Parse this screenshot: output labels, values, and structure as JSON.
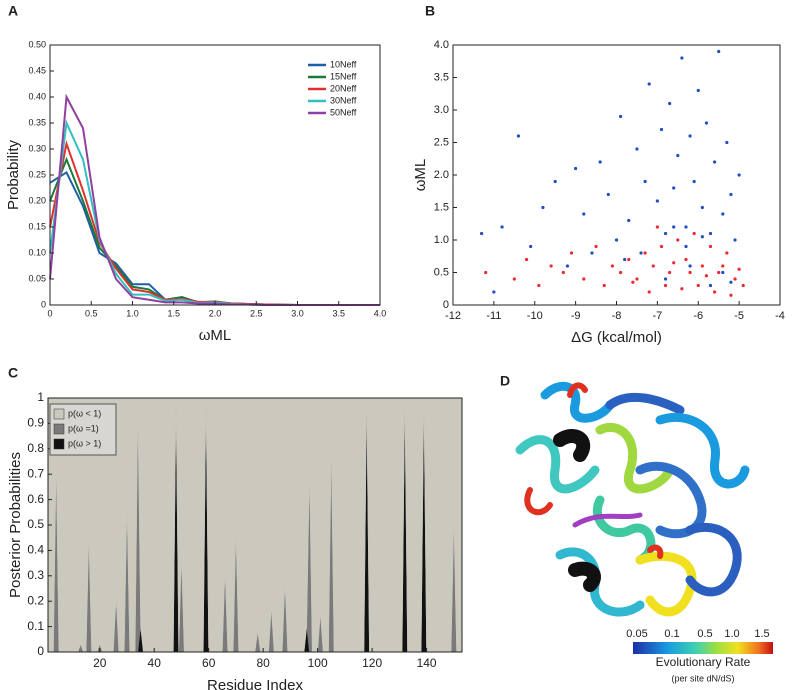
{
  "chart_data": [
    {
      "type": "line",
      "panel": "A",
      "xlabel": "ωML",
      "ylabel": "Probability",
      "x": [
        0,
        0.2,
        0.4,
        0.6,
        0.8,
        1.0,
        1.2,
        1.4,
        1.6,
        1.8,
        2.0,
        2.2,
        2.4,
        2.6,
        3.0,
        3.5,
        4.0
      ],
      "series": [
        {
          "name": "10Neff",
          "color": "#1f5fa8",
          "values": [
            0.235,
            0.255,
            0.19,
            0.1,
            0.08,
            0.04,
            0.04,
            0.01,
            0.015,
            0.005,
            0.005,
            0.003,
            0.002,
            0.001,
            0,
            0,
            0
          ]
        },
        {
          "name": "15Neff",
          "color": "#1a7a3a",
          "values": [
            0.2,
            0.28,
            0.2,
            0.11,
            0.075,
            0.035,
            0.03,
            0.01,
            0.015,
            0.005,
            0.007,
            0.003,
            0.002,
            0.001,
            0,
            0,
            0
          ]
        },
        {
          "name": "20Neff",
          "color": "#e03030",
          "values": [
            0.15,
            0.31,
            0.22,
            0.12,
            0.07,
            0.03,
            0.025,
            0.01,
            0.012,
            0.006,
            0.006,
            0.003,
            0.002,
            0.001,
            0,
            0,
            0
          ]
        },
        {
          "name": "30Neff",
          "color": "#30c0c0",
          "values": [
            0.1,
            0.35,
            0.28,
            0.125,
            0.06,
            0.02,
            0.02,
            0.008,
            0.01,
            0.004,
            0.005,
            0.002,
            0.001,
            0,
            0,
            0,
            0
          ]
        },
        {
          "name": "50Neff",
          "color": "#9040a0",
          "values": [
            0.05,
            0.4,
            0.34,
            0.13,
            0.05,
            0.015,
            0.01,
            0.005,
            0.005,
            0.003,
            0.003,
            0.001,
            0.001,
            0,
            0,
            0,
            0
          ]
        }
      ],
      "xlim": [
        0,
        4
      ],
      "xticks": [
        0,
        0.5,
        {
          "value": 1,
          "label": "1.0"
        },
        1.5,
        {
          "value": 2,
          "label": "2.0"
        },
        2.5,
        {
          "value": 3,
          "label": "3.0"
        },
        3.5,
        {
          "value": 4,
          "label": "4.0"
        }
      ],
      "ylim": [
        0,
        0.5
      ],
      "yticks": [
        0,
        0.05,
        {
          "value": 0.1,
          "label": "0.10"
        },
        0.15,
        {
          "value": 0.2,
          "label": "0.20"
        },
        0.25,
        {
          "value": 0.3,
          "label": "0.30"
        },
        0.35,
        {
          "value": 0.4,
          "label": "0.40"
        },
        0.45,
        {
          "value": 0.5,
          "label": "0.50"
        }
      ],
      "grid": false,
      "legend": "top-right"
    },
    {
      "type": "scatter",
      "panel": "B",
      "xlabel": "ΔG (kcal/mol)",
      "ylabel": "ωML",
      "series": [
        {
          "color": "#2050c0",
          "x": [
            -11.3,
            -11,
            -10.8,
            -10.4,
            -10.1,
            -9.8,
            -9.5,
            -9.2,
            -9,
            -8.8,
            -8.6,
            -8.4,
            -8.2,
            -8,
            -7.9,
            -7.7,
            -7.5,
            -7.3,
            -7.2,
            -7,
            -6.9,
            -6.8,
            -6.7,
            -6.6,
            -6.5,
            -6.4,
            -6.3,
            -6.2,
            -6.1,
            -6,
            -5.9,
            -5.8,
            -5.7,
            -5.6,
            -5.5,
            -5.4,
            -5.3,
            -5.2,
            -5.1,
            -5,
            -6.8,
            -6.2,
            -5.7,
            -7.4,
            -5.4,
            -6.6,
            -5.9,
            -6.3,
            -7.8,
            -5.2
          ],
          "values": [
            1.1,
            0.2,
            1.2,
            2.6,
            0.9,
            1.5,
            1.9,
            0.6,
            2.1,
            1.4,
            0.8,
            2.2,
            1.7,
            1.0,
            2.9,
            1.3,
            2.4,
            1.9,
            3.4,
            1.6,
            2.7,
            1.1,
            3.1,
            1.8,
            2.3,
            3.8,
            1.2,
            2.6,
            1.9,
            3.3,
            1.5,
            2.8,
            1.1,
            2.2,
            3.9,
            1.4,
            2.5,
            1.7,
            1.0,
            2.0,
            0.4,
            0.6,
            0.3,
            0.8,
            0.5,
            1.2,
            1.05,
            0.9,
            0.7,
            0.35
          ]
        },
        {
          "color": "#f02830",
          "x": [
            -11.2,
            -10.5,
            -10.2,
            -9.9,
            -9.6,
            -9.3,
            -9.1,
            -8.8,
            -8.5,
            -8.3,
            -8.1,
            -7.9,
            -7.7,
            -7.5,
            -7.3,
            -7.1,
            -6.9,
            -6.7,
            -6.5,
            -6.3,
            -6.1,
            -5.9,
            -5.7,
            -5.5,
            -5.3,
            -5.1,
            -4.9,
            -7.2,
            -6.8,
            -6.4,
            -6.0,
            -5.6,
            -5.2,
            -7.6,
            -6.2,
            -5.8,
            -5.4,
            -6.6,
            -7.0,
            -5.0
          ],
          "values": [
            0.5,
            0.4,
            0.7,
            0.3,
            0.6,
            0.5,
            0.8,
            0.4,
            0.9,
            0.3,
            0.6,
            0.5,
            0.7,
            0.4,
            0.8,
            0.6,
            0.9,
            0.5,
            1.0,
            0.7,
            1.1,
            0.6,
            0.9,
            0.5,
            0.8,
            0.4,
            0.3,
            0.2,
            0.3,
            0.25,
            0.3,
            0.2,
            0.15,
            0.35,
            0.5,
            0.45,
            0.6,
            0.65,
            1.2,
            0.55
          ]
        }
      ],
      "xlim": [
        -12,
        -4
      ],
      "xticks": [
        -12,
        -11,
        -10,
        -9,
        -8,
        -7,
        -6,
        -5,
        -4
      ],
      "ylim": [
        0,
        4
      ],
      "yticks": [
        0,
        0.5,
        {
          "value": 1,
          "label": "1.0"
        },
        1.5,
        {
          "value": 2,
          "label": "2.0"
        },
        2.5,
        {
          "value": 3,
          "label": "3.0"
        },
        3.5,
        {
          "value": 4,
          "label": "4.0"
        }
      ],
      "grid": false
    },
    {
      "type": "area",
      "panel": "C",
      "xlabel": "Residue Index",
      "ylabel": "Posterior Probabilities",
      "stacked": true,
      "x": [
        1,
        3,
        4,
        5,
        12,
        13,
        14,
        15,
        16,
        17,
        19,
        20,
        21,
        25,
        26,
        27,
        29,
        30,
        31,
        33,
        34,
        35,
        36,
        47,
        48,
        49,
        50,
        51,
        58,
        59,
        60,
        65,
        66,
        67,
        69,
        70,
        71,
        77,
        78,
        79,
        82,
        83,
        84,
        87,
        88,
        89,
        95,
        96,
        97,
        98,
        100,
        101,
        102,
        104,
        105,
        106,
        117,
        118,
        119,
        131,
        132,
        133,
        138,
        139,
        140,
        149,
        150,
        151,
        153
      ],
      "series": [
        {
          "name": "p(ω < 1)",
          "color": "#cbc8be",
          "values": [
            1,
            1,
            0.27,
            1,
            1,
            0.97,
            1,
            1,
            0.55,
            1,
            1,
            0.97,
            1,
            1,
            0.79,
            1,
            1,
            0.43,
            1,
            1,
            0.06,
            0.9,
            1,
            1,
            0.01,
            1,
            0.63,
            1,
            1,
            0,
            1,
            1,
            0.68,
            1,
            1,
            0.53,
            1,
            1,
            0.92,
            1,
            1,
            0.83,
            1,
            1,
            0.73,
            1,
            1,
            0.9,
            0.3,
            1,
            1,
            0.85,
            1,
            1,
            0.21,
            1,
            1,
            0,
            1,
            1,
            0,
            1,
            1,
            0,
            1,
            1,
            0.49,
            1,
            1
          ]
        },
        {
          "name": "p(ω =1)",
          "color": "#7a7a7a",
          "values": [
            0,
            0,
            0.73,
            0,
            0,
            0.03,
            0,
            0,
            0.45,
            0,
            0,
            0.03,
            0,
            0,
            0.21,
            0,
            0,
            0.57,
            0,
            0,
            0.94,
            0,
            0,
            0,
            0,
            0,
            0.37,
            0,
            0,
            0,
            0,
            0,
            0.32,
            0,
            0,
            0.47,
            0,
            0,
            0.08,
            0,
            0,
            0.17,
            0,
            0,
            0.27,
            0,
            0,
            0,
            0.7,
            0,
            0,
            0.15,
            0,
            0,
            0.79,
            0,
            0,
            0,
            0,
            0,
            0,
            0,
            0,
            0,
            0,
            0,
            0.51,
            0,
            0
          ]
        },
        {
          "name": "p(ω > 1)",
          "color": "#111111",
          "values": [
            0,
            0,
            0,
            0,
            0,
            0,
            0,
            0,
            0,
            0,
            0,
            0,
            0,
            0,
            0,
            0,
            0,
            0,
            0,
            0,
            0,
            0.1,
            0,
            0,
            0.99,
            0,
            0,
            0,
            0,
            1,
            0,
            0,
            0,
            0,
            0,
            0,
            0,
            0,
            0,
            0,
            0,
            0,
            0,
            0,
            0,
            0,
            0,
            0.1,
            0,
            0,
            0,
            0,
            0,
            0,
            0,
            0,
            0,
            1,
            0,
            0,
            1,
            0,
            0,
            1,
            0,
            0,
            0,
            0,
            0
          ]
        }
      ],
      "xlim": [
        1,
        153
      ],
      "xticks": [
        20,
        40,
        60,
        80,
        100,
        120,
        140
      ],
      "ylim": [
        0,
        1
      ],
      "yticks": [
        0,
        0.1,
        0.2,
        0.3,
        0.4,
        0.5,
        0.6,
        0.7,
        0.8,
        0.9,
        1
      ],
      "grid": false,
      "legend": "top-left"
    }
  ],
  "panel_d": {
    "panel": "D",
    "colorbar": {
      "ticks": [
        "0.05",
        "0.1",
        "0.5",
        "1.0",
        "1.5"
      ],
      "title": "Evolutionary Rate",
      "note": "(per site dN/dS)"
    }
  }
}
